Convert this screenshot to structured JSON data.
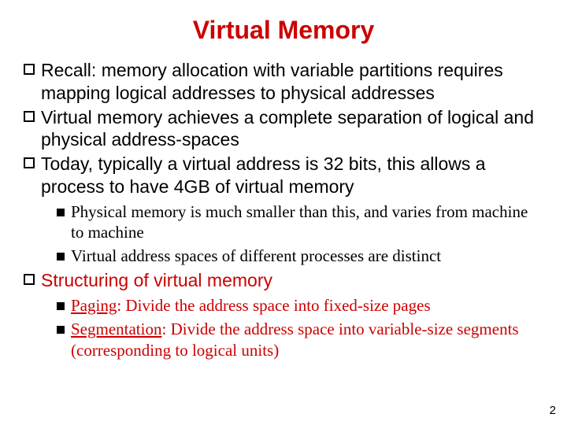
{
  "title": {
    "text": "Virtual Memory",
    "color": "#cc0000",
    "fontsize": 32
  },
  "level1": {
    "fontsize": 23,
    "font_family": "'Comic Sans MS', cursive, sans-serif",
    "color_default": "#000000",
    "color_highlight": "#cc0000",
    "items": [
      {
        "text": "Recall: memory allocation with variable partitions requires mapping logical addresses to physical addresses",
        "color": "#000000"
      },
      {
        "text": "Virtual memory achieves a complete separation of logical and physical address-spaces",
        "color": "#000000"
      },
      {
        "text": "Today, typically a virtual address is 32 bits, this allows a process to have 4GB of virtual memory",
        "color": "#000000"
      },
      {
        "text": "Structuring of virtual memory",
        "color": "#cc0000"
      }
    ]
  },
  "sublist1": {
    "fontsize": 21,
    "font_family": "'Times New Roman', Times, serif",
    "items": [
      "Physical memory is much smaller than this, and varies from machine to machine",
      "Virtual address spaces of different processes are distinct"
    ]
  },
  "sublist2": {
    "fontsize": 21,
    "font_family": "'Times New Roman', Times, serif",
    "color": "#cc0000",
    "items": [
      {
        "term": "Paging",
        "rest": ": Divide the address space into fixed-size pages"
      },
      {
        "term": "Segmentation",
        "rest": ": Divide the address space into variable-size segments (corresponding to logical units)"
      }
    ]
  },
  "page_number": "2"
}
